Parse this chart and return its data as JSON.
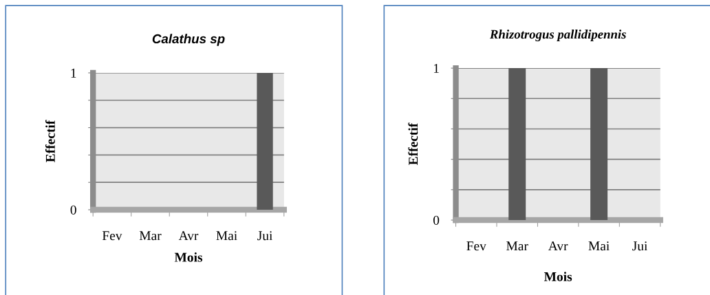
{
  "chart_data": [
    {
      "type": "bar",
      "title": "Calathus sp",
      "xlabel": "Mois",
      "ylabel": "Effectif",
      "categories": [
        "Fev",
        "Mar",
        "Avr",
        "Mai",
        "Jui"
      ],
      "values": [
        0,
        0,
        0,
        0,
        1
      ],
      "color": "#595959",
      "ylim": [
        0,
        1
      ],
      "yticks": [
        0,
        {
          "value": 0.2,
          "label": null
        },
        {
          "value": 0.4,
          "label": null
        },
        {
          "value": 0.6,
          "label": null
        },
        {
          "value": 0.8,
          "label": null
        },
        1
      ],
      "grid": "y"
    },
    {
      "type": "bar",
      "title": "Rhizotrogus pallidipennis",
      "xlabel": "Mois",
      "ylabel": "Effectif",
      "categories": [
        "Fev",
        "Mar",
        "Avr",
        "Mai",
        "Jui"
      ],
      "values": [
        0,
        1,
        0,
        1,
        0
      ],
      "color": "#595959",
      "ylim": [
        0,
        1
      ],
      "yticks": [
        0,
        {
          "value": 0.2,
          "label": null
        },
        {
          "value": 0.4,
          "label": null
        },
        {
          "value": 0.6,
          "label": null
        },
        {
          "value": 0.8,
          "label": null
        },
        1
      ],
      "grid": "y"
    }
  ]
}
